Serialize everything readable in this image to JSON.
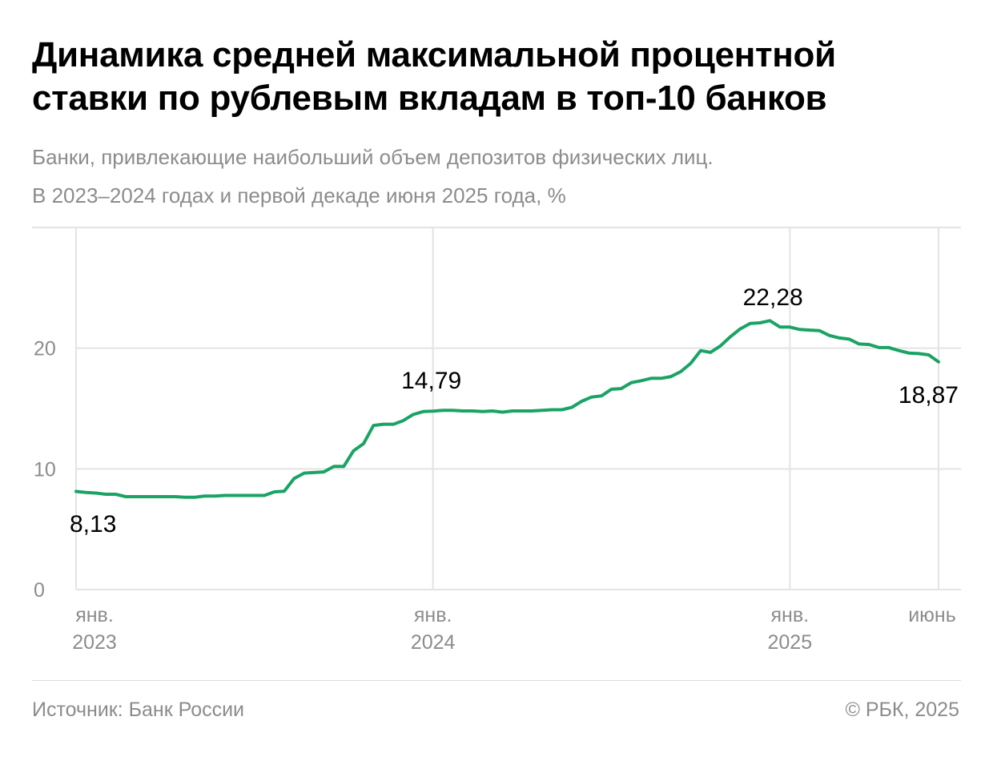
{
  "title_line1": "Динамика средней максимальной процентной",
  "title_line2": "ставки по рублевым вкладам в топ-10 банков",
  "subtitle_line1": "Банки, привлекающие наибольший объем депозитов физических лиц.",
  "subtitle_line2": "В 2023–2024 годах и первой декаде июня 2025 года, %",
  "source": "Источник: Банк России",
  "copyright": "© РБК, 2025",
  "colors": {
    "line": "#1aa365",
    "grid": "#e3e3e3",
    "axis_text": "#8c8c8c",
    "label": "#000000"
  },
  "chart_data": {
    "type": "line",
    "title": "Динамика средней максимальной процентной ставки по рублевым вкладам в топ-10 банков",
    "xlabel": "",
    "ylabel": "",
    "ylim": [
      0,
      30
    ],
    "grid": true,
    "y_ticks": [
      0,
      10,
      20
    ],
    "x_ticks": [
      {
        "month": 0,
        "line1": "янв.",
        "line2": "2023"
      },
      {
        "month": 12,
        "line1": "янв.",
        "line2": "2024"
      },
      {
        "month": 24,
        "line1": "янв.",
        "line2": "2025"
      },
      {
        "month": 29,
        "line1": "июнь",
        "line2": ""
      }
    ],
    "x_unit": "months since Jan 2023",
    "series": [
      {
        "name": "",
        "x": [
          0,
          0.33,
          0.67,
          1,
          1.33,
          1.67,
          2,
          2.33,
          2.67,
          3,
          3.33,
          3.67,
          4,
          4.33,
          4.67,
          5,
          5.33,
          5.67,
          6,
          6.33,
          6.67,
          7,
          7.33,
          7.67,
          8,
          8.33,
          8.67,
          9,
          9.33,
          9.67,
          10,
          10.33,
          10.67,
          11,
          11.33,
          11.67,
          12,
          12.33,
          12.67,
          13,
          13.33,
          13.67,
          14,
          14.33,
          14.67,
          15,
          15.33,
          15.67,
          16,
          16.33,
          16.67,
          17,
          17.33,
          17.67,
          18,
          18.33,
          18.67,
          19,
          19.33,
          19.67,
          20,
          20.33,
          20.67,
          21,
          21.33,
          21.67,
          22,
          22.33,
          22.67,
          23,
          23.33,
          23.67,
          24,
          24.33,
          24.67,
          25,
          25.33,
          25.67,
          26,
          26.33,
          26.67,
          27,
          27.33,
          27.67,
          28,
          28.33,
          28.67,
          29
        ],
        "values": [
          8.13,
          8.05,
          8.0,
          7.9,
          7.9,
          7.7,
          7.7,
          7.7,
          7.7,
          7.7,
          7.7,
          7.65,
          7.65,
          7.75,
          7.75,
          7.8,
          7.8,
          7.8,
          7.8,
          7.8,
          8.1,
          8.15,
          9.2,
          9.65,
          9.7,
          9.75,
          10.2,
          10.2,
          11.5,
          12.1,
          13.6,
          13.7,
          13.7,
          14.0,
          14.5,
          14.75,
          14.79,
          14.85,
          14.85,
          14.8,
          14.8,
          14.75,
          14.8,
          14.7,
          14.8,
          14.8,
          14.8,
          14.85,
          14.9,
          14.9,
          15.1,
          15.6,
          15.95,
          16.05,
          16.6,
          16.65,
          17.15,
          17.3,
          17.5,
          17.5,
          17.65,
          18.05,
          18.75,
          19.8,
          19.65,
          20.2,
          20.95,
          21.6,
          22.05,
          22.1,
          22.28,
          21.75,
          21.75,
          21.55,
          21.5,
          21.45,
          21.05,
          20.85,
          20.75,
          20.35,
          20.3,
          20.05,
          20.05,
          19.8,
          19.6,
          19.55,
          19.45,
          18.87
        ]
      }
    ],
    "annotations": [
      {
        "text": "8,13",
        "x": 0,
        "y": 8.13,
        "pos": "below"
      },
      {
        "text": "14,79",
        "x": 12,
        "y": 14.79,
        "pos": "above"
      },
      {
        "text": "22,28",
        "x": 23,
        "y": 22.28,
        "pos": "above"
      },
      {
        "text": "18,87",
        "x": 29,
        "y": 18.87,
        "pos": "below"
      }
    ]
  }
}
